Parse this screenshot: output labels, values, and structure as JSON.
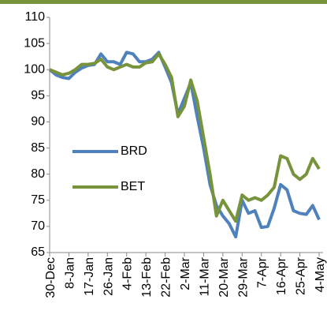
{
  "chart_data": {
    "type": "line",
    "x": [
      0,
      3,
      6,
      9,
      12,
      15,
      18,
      21,
      24,
      27,
      30,
      33,
      36,
      39,
      42,
      45,
      48,
      51,
      54,
      57,
      60,
      63,
      66,
      69,
      72,
      75,
      78,
      81,
      84,
      87,
      90,
      93,
      96,
      99,
      102,
      105,
      108,
      111,
      114,
      117,
      120,
      123,
      126
    ],
    "series": [
      {
        "name": "BRD",
        "color": "#4f81bd",
        "values": [
          100,
          99,
          98.5,
          98.3,
          99.5,
          100.3,
          100.8,
          101,
          103,
          101.5,
          101.5,
          101,
          103.3,
          103,
          101.5,
          101.5,
          102,
          103.3,
          100.5,
          97.5,
          91.5,
          94.5,
          97.5,
          91,
          85,
          78,
          74,
          72,
          70.5,
          68,
          75,
          72.5,
          73,
          69.8,
          70,
          73.5,
          78,
          77,
          73,
          72.5,
          72.3,
          74,
          71.3
        ]
      },
      {
        "name": "BET",
        "color": "#77933c",
        "values": [
          100,
          99.5,
          99,
          99.3,
          100,
          101,
          101,
          101.2,
          102,
          100.5,
          100,
          100.5,
          101,
          100.5,
          100.5,
          101.3,
          101.5,
          103,
          101,
          98.5,
          91,
          93,
          98,
          94,
          87,
          80,
          72,
          75,
          73,
          71,
          76,
          75,
          75.5,
          75,
          76,
          77.5,
          83.5,
          83,
          80,
          79,
          80,
          83,
          81
        ]
      }
    ],
    "xlim": [
      0,
      126
    ],
    "xticks": [
      {
        "value": 0,
        "label": "30-Dec"
      },
      {
        "value": 9,
        "label": "8-Jan"
      },
      {
        "value": 18,
        "label": "17-Jan"
      },
      {
        "value": 27,
        "label": "26-Jan"
      },
      {
        "value": 36,
        "label": "4-Feb"
      },
      {
        "value": 45,
        "label": "13-Feb"
      },
      {
        "value": 54,
        "label": "22-Feb"
      },
      {
        "value": 63,
        "label": "2-Mar"
      },
      {
        "value": 72,
        "label": "11-Mar"
      },
      {
        "value": 81,
        "label": "20-Mar"
      },
      {
        "value": 90,
        "label": "29-Mar"
      },
      {
        "value": 99,
        "label": "7-Apr"
      },
      {
        "value": 108,
        "label": "16-Apr"
      },
      {
        "value": 117,
        "label": "25-Apr"
      },
      {
        "value": 126,
        "label": "4-May"
      }
    ],
    "ylim": [
      65,
      110
    ],
    "yticks": [
      65,
      70,
      75,
      80,
      85,
      90,
      95,
      100,
      105,
      110
    ],
    "grid": false
  }
}
